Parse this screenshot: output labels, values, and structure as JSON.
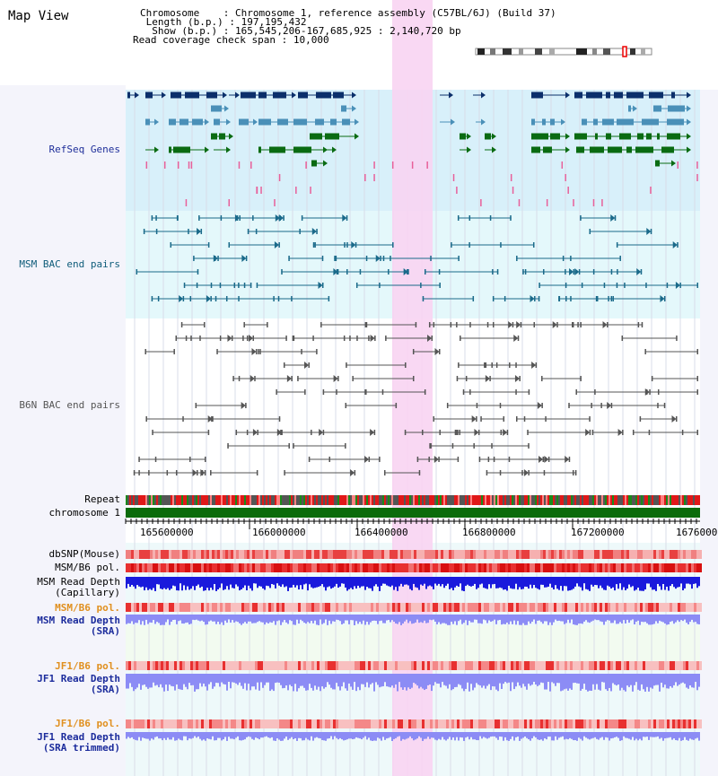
{
  "title": "Map View",
  "info": {
    "chromosome_label": "Chromosome    ",
    "chromosome_value": "Chromosome 1, reference assembly (C57BL/6J) (Build 37)",
    "length_label": "Length (b.p.)",
    "length_value": "197,195,432",
    "show_label": "Show (b.p.)",
    "show_value": "165,545,206-167,685,925 : 2,140,720 bp",
    "coverage_label": "Read coverage check span",
    "coverage_value": "10,000"
  },
  "tracks": {
    "refseq": "RefSeq Genes",
    "msm_bac": "MSM BAC end pairs",
    "b6n_bac": "B6N BAC end pairs",
    "repeat": "Repeat",
    "chromosome": "chromosome 1",
    "dbsnp": "dbSNP(Mouse)",
    "msm_b6_pol": "MSM/B6 pol.",
    "msm_read_depth_cap_1": "MSM Read Depth",
    "msm_read_depth_cap_2": "(Capillary)",
    "msm_b6_pol_2": "MSM/B6 pol.",
    "msm_read_depth_sra_1": "MSM Read Depth",
    "msm_read_depth_sra_2": "(SRA)",
    "jf1_b6_pol": "JF1/B6 pol.",
    "jf1_read_depth_sra_1": "JF1 Read Depth",
    "jf1_read_depth_sra_2": "(SRA)",
    "jf1_b6_pol_2": "JF1/B6 pol.",
    "jf1_read_depth_trim_1": "JF1 Read Depth",
    "jf1_read_depth_trim_2": "(SRA trimmed)"
  },
  "axis": {
    "ticks": [
      "165600000",
      "166000000",
      "166400000",
      "166800000",
      "167200000",
      "1676000"
    ]
  },
  "colors": {
    "refseq_bg": "#d8f0fa",
    "msm_bg": "#e4f8fb",
    "highlight": "#f8d4f2",
    "gene_dark": "#0b2f6b",
    "gene_mid": "#4a90b8",
    "gene_green": "#0a6b12",
    "msm_line": "#1a6a8a",
    "b6n_line": "#555555",
    "chrom_bar": "#0b6b0b",
    "depth_blue": "#1a1adc",
    "depth_light": "#8c8cf5"
  }
}
